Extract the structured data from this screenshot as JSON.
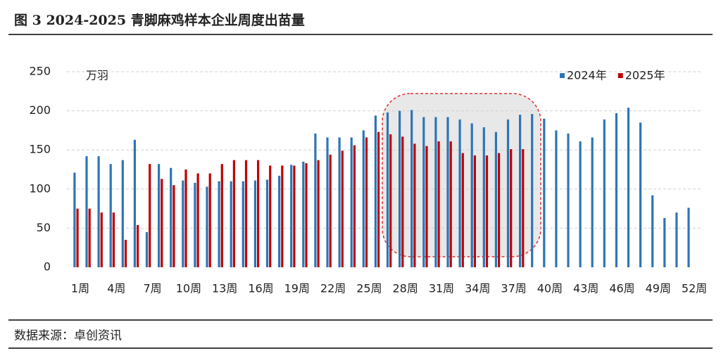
{
  "title": "图 3 2024-2025 青脚麻鸡样本企业周度出苗量",
  "source": "数据来源：卓创资讯",
  "chart_data": {
    "type": "bar",
    "y_unit": "万羽",
    "categories": [
      "1周",
      null,
      null,
      "4周",
      null,
      null,
      "7周",
      null,
      null,
      "10周",
      null,
      null,
      "13周",
      null,
      null,
      "16周",
      null,
      null,
      "19周",
      null,
      null,
      "22周",
      null,
      null,
      "25周",
      null,
      null,
      "28周",
      null,
      null,
      "31周",
      null,
      null,
      "34周",
      null,
      null,
      "37周",
      null,
      null,
      "40周",
      null,
      null,
      "43周",
      null,
      null,
      "46周",
      null,
      null,
      "49周",
      null,
      null,
      "52周"
    ],
    "series": [
      {
        "name": "2024年",
        "color": "#2e75b6",
        "values": [
          121,
          142,
          142,
          132,
          137,
          163,
          45,
          132,
          127,
          111,
          108,
          103,
          110,
          110,
          110,
          111,
          112,
          117,
          131,
          135,
          171,
          166,
          166,
          166,
          175,
          194,
          198,
          200,
          201,
          192,
          192,
          192,
          189,
          184,
          179,
          173,
          189,
          195,
          196,
          190,
          175,
          171,
          161,
          166,
          189,
          197,
          204,
          185,
          92,
          63,
          70,
          76
        ]
      },
      {
        "name": "2025年",
        "color": "#c00000",
        "values": [
          75,
          75,
          70,
          70,
          35,
          54,
          132,
          113,
          105,
          125,
          120,
          120,
          132,
          137,
          137,
          137,
          130,
          130,
          130,
          133,
          137,
          144,
          149,
          156,
          166,
          173,
          170,
          167,
          158,
          155,
          161,
          161,
          146,
          143,
          143,
          146,
          151,
          151,
          null,
          null,
          null,
          null,
          null,
          null,
          null,
          null,
          null,
          null,
          null,
          null,
          null,
          null
        ]
      }
    ],
    "ylim": [
      0,
      250
    ],
    "yticks": [
      0,
      50,
      100,
      150,
      200,
      250
    ],
    "grid": true,
    "legend": "top-right"
  }
}
